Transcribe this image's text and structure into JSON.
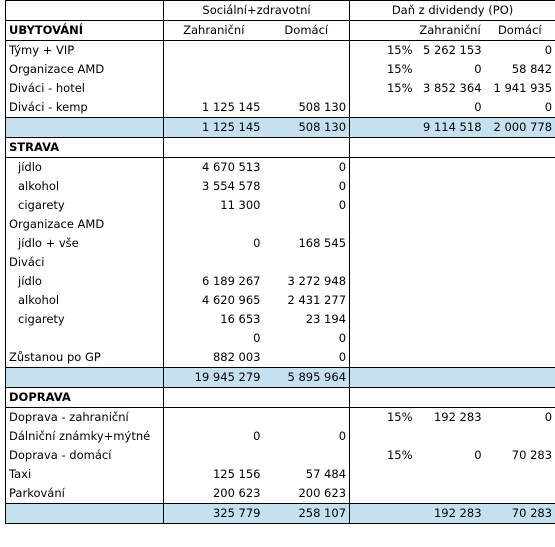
{
  "header": {
    "group1": "Sociální+zdravotní",
    "group2": "Daň z dividendy (PO)",
    "col_zahr": "Zahraniční",
    "col_dom": "Domácí"
  },
  "ubytovani": {
    "title": "UBYTOVÁNÍ",
    "rows": [
      {
        "label": "Týmy + VIP",
        "zahr": "",
        "dom": "",
        "pct": "15%",
        "d_zahr": "5 262 153",
        "d_dom": "0"
      },
      {
        "label": "Organizace AMD",
        "zahr": "",
        "dom": "",
        "pct": "15%",
        "d_zahr": "0",
        "d_dom": "58 842"
      },
      {
        "label": "Diváci - hotel",
        "zahr": "",
        "dom": "",
        "pct": "15%",
        "d_zahr": "3 852 364",
        "d_dom": "1 941 935"
      },
      {
        "label": "Diváci - kemp",
        "zahr": "1 125 145",
        "dom": "508 130",
        "pct": "",
        "d_zahr": "0",
        "d_dom": "0"
      }
    ],
    "total": {
      "zahr": "1 125 145",
      "dom": "508 130",
      "d_zahr": "9 114 518",
      "d_dom": "2 000 778"
    }
  },
  "strava": {
    "title": "STRAVA",
    "rows": [
      {
        "label": "jídlo",
        "indent": true,
        "zahr": "4 670 513",
        "dom": "0"
      },
      {
        "label": "alkohol",
        "indent": true,
        "zahr": "3 554 578",
        "dom": "0"
      },
      {
        "label": "cigarety",
        "indent": true,
        "zahr": "11 300",
        "dom": "0"
      },
      {
        "label": "Organizace AMD",
        "indent": false,
        "zahr": "",
        "dom": ""
      },
      {
        "label": "jídlo + vše",
        "indent": true,
        "zahr": "0",
        "dom": "168 545"
      },
      {
        "label": "Diváci",
        "indent": false,
        "zahr": "",
        "dom": ""
      },
      {
        "label": "jídlo",
        "indent": true,
        "zahr": "6 189 267",
        "dom": "3 272 948"
      },
      {
        "label": "alkohol",
        "indent": true,
        "zahr": "4 620 965",
        "dom": "2 431 277"
      },
      {
        "label": "cigarety",
        "indent": true,
        "zahr": "16 653",
        "dom": "23 194"
      },
      {
        "label": "",
        "indent": false,
        "zahr": "0",
        "dom": "0"
      },
      {
        "label": "Zůstanou po GP",
        "indent": false,
        "zahr": "882 003",
        "dom": "0"
      }
    ],
    "total": {
      "zahr": "19 945 279",
      "dom": "5 895 964"
    }
  },
  "doprava": {
    "title": "DOPRAVA",
    "rows": [
      {
        "label": "Doprava - zahraniční",
        "zahr": "",
        "dom": "",
        "pct": "15%",
        "d_zahr": "192 283",
        "d_dom": "0"
      },
      {
        "label": "Dálniční známky+mýtné",
        "zahr": "0",
        "dom": "0",
        "pct": "",
        "d_zahr": "",
        "d_dom": ""
      },
      {
        "label": "Doprava - domácí",
        "zahr": "",
        "dom": "",
        "pct": "15%",
        "d_zahr": "0",
        "d_dom": "70 283"
      },
      {
        "label": "Taxi",
        "zahr": "125 156",
        "dom": "57 484",
        "pct": "",
        "d_zahr": "",
        "d_dom": ""
      },
      {
        "label": "Parkování",
        "zahr": "200 623",
        "dom": "200 623",
        "pct": "",
        "d_zahr": "",
        "d_dom": ""
      }
    ],
    "total": {
      "zahr": "325 779",
      "dom": "258 107",
      "d_zahr": "192 283",
      "d_dom": "70 283"
    }
  }
}
